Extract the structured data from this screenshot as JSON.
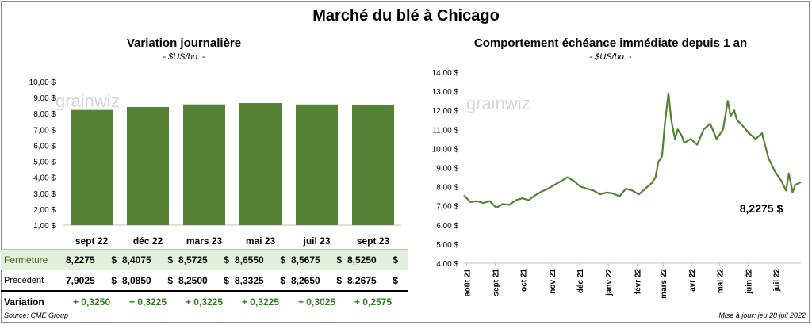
{
  "main_title": "Marché du blé à Chicago",
  "left": {
    "title": "Variation  journalière",
    "subtitle": "- $US/bo. -",
    "watermark": "grainwiz",
    "table": {
      "row_labels": [
        "Fermeture",
        "Précédent",
        "Variation"
      ],
      "close": [
        "8,2275",
        "8,4075",
        "8,5725",
        "8,6550",
        "8,5675",
        "8,5250"
      ],
      "previous": [
        "7,9025",
        "8,0850",
        "8,2500",
        "8,3325",
        "8,2650",
        "8,2675"
      ],
      "variation": [
        "+ 0,3250",
        "+ 0,3225",
        "+ 0,3225",
        "+ 0,3225",
        "+ 0,3025",
        "+ 0,2575"
      ],
      "currency": "$"
    }
  },
  "right": {
    "title": "Comportement  échéance immédiate depuis 1 an",
    "subtitle": "- $US/bo. -",
    "watermark": "grainwiz",
    "last_value_label": "8,2275 $"
  },
  "footer": {
    "source": "Source: CME Group",
    "updated": "Mise à jour: jeu 28 juil 2022"
  },
  "colors": {
    "bar": "#548235",
    "line": "#548235",
    "highlight_row": "#e2efda",
    "variation_text": "#2e7d1e"
  },
  "chart_data": [
    {
      "type": "bar",
      "title": "Variation  journalière",
      "subtitle": "- $US/bo. -",
      "categories": [
        "sept 22",
        "déc 22",
        "mars 23",
        "mai 23",
        "juil 23",
        "sept 23"
      ],
      "values": [
        8.2275,
        8.4075,
        8.5725,
        8.655,
        8.5675,
        8.525
      ],
      "ylim": [
        1,
        10
      ],
      "yticks": [
        "1,00 $",
        "2,00 $",
        "3,00 $",
        "4,00 $",
        "5,00 $",
        "6,00 $",
        "7,00 $",
        "8,00 $",
        "9,00 $",
        "10,00 $"
      ],
      "grid": false
    },
    {
      "type": "line",
      "title": "Comportement  échéance immédiate depuis 1 an",
      "subtitle": "- $US/bo. -",
      "ylim": [
        4,
        14
      ],
      "yticks": [
        "4,00 $",
        "5,00 $",
        "6,00 $",
        "7,00 $",
        "8,00 $",
        "9,00 $",
        "10,00 $",
        "11,00 $",
        "12,00 $",
        "13,00 $",
        "14,00 $"
      ],
      "xticks": [
        "août 21",
        "sept 21",
        "oct 21",
        "nov 21",
        "déc 21",
        "janv 22",
        "févr 22",
        "mars 22",
        "avr 22",
        "mai 22",
        "juin 22",
        "juil 22"
      ],
      "x": [
        "2021-07-29",
        "2021-08-05",
        "2021-08-12",
        "2021-08-19",
        "2021-08-26",
        "2021-09-02",
        "2021-09-09",
        "2021-09-16",
        "2021-09-23",
        "2021-09-30",
        "2021-10-07",
        "2021-10-14",
        "2021-10-21",
        "2021-10-28",
        "2021-11-04",
        "2021-11-11",
        "2021-11-18",
        "2021-11-25",
        "2021-12-02",
        "2021-12-09",
        "2021-12-16",
        "2021-12-23",
        "2021-12-30",
        "2022-01-06",
        "2022-01-13",
        "2022-01-20",
        "2022-01-27",
        "2022-02-03",
        "2022-02-10",
        "2022-02-17",
        "2022-02-21",
        "2022-02-24",
        "2022-02-28",
        "2022-03-03",
        "2022-03-07",
        "2022-03-10",
        "2022-03-14",
        "2022-03-17",
        "2022-03-21",
        "2022-03-24",
        "2022-03-31",
        "2022-04-07",
        "2022-04-14",
        "2022-04-21",
        "2022-04-28",
        "2022-05-05",
        "2022-05-10",
        "2022-05-13",
        "2022-05-17",
        "2022-05-20",
        "2022-05-26",
        "2022-06-02",
        "2022-06-09",
        "2022-06-16",
        "2022-06-23",
        "2022-06-30",
        "2022-07-07",
        "2022-07-12",
        "2022-07-15",
        "2022-07-19",
        "2022-07-22",
        "2022-07-26",
        "2022-07-28"
      ],
      "y": [
        7.55,
        7.2,
        7.25,
        7.15,
        7.25,
        6.9,
        7.1,
        7.05,
        7.3,
        7.4,
        7.3,
        7.55,
        7.75,
        7.9,
        8.1,
        8.3,
        8.5,
        8.3,
        8.0,
        7.9,
        7.8,
        7.6,
        7.7,
        7.65,
        7.5,
        7.9,
        7.8,
        7.6,
        7.9,
        8.2,
        8.5,
        9.3,
        9.6,
        11.3,
        12.9,
        11.5,
        10.5,
        11.0,
        10.7,
        10.3,
        10.5,
        10.2,
        11.0,
        11.3,
        10.5,
        11.0,
        12.5,
        11.7,
        12.0,
        11.5,
        11.2,
        10.8,
        10.5,
        10.8,
        9.5,
        8.8,
        8.3,
        7.8,
        8.7,
        7.7,
        8.1,
        8.2,
        8.2275
      ],
      "last_label": "8,2275 $"
    }
  ]
}
